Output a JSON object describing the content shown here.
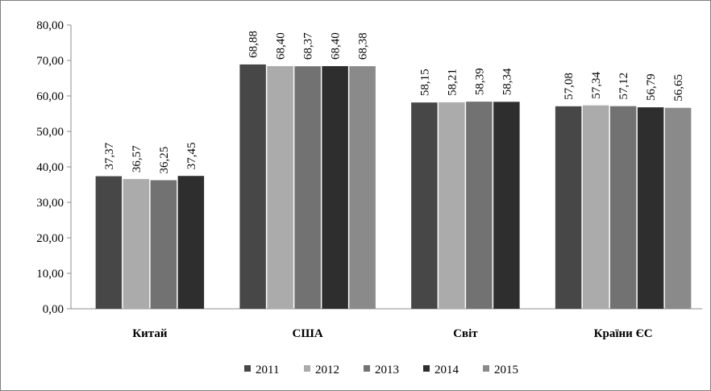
{
  "chart_data": {
    "type": "bar",
    "title": "",
    "xlabel": "",
    "ylabel": "",
    "categories": [
      "Китай",
      "США",
      "Світ",
      "Країни ЄС"
    ],
    "series": [
      {
        "name": "2011",
        "color": "#474747",
        "values": [
          37.37,
          68.88,
          58.15,
          57.08
        ]
      },
      {
        "name": "2012",
        "color": "#ababab",
        "values": [
          36.57,
          68.4,
          58.21,
          57.34
        ]
      },
      {
        "name": "2013",
        "color": "#727272",
        "values": [
          36.25,
          68.37,
          58.39,
          57.12
        ]
      },
      {
        "name": "2014",
        "color": "#2e2e2e",
        "values": [
          37.45,
          68.4,
          58.34,
          56.79
        ]
      },
      {
        "name": "2015",
        "color": "#8a8a8a",
        "values": [
          null,
          68.38,
          null,
          56.65
        ]
      }
    ],
    "data_labels": [
      [
        "37,37",
        "68,88",
        "58,15",
        "57,08"
      ],
      [
        "36,57",
        "68,40",
        "58,21",
        "57,34"
      ],
      [
        "36,25",
        "68,37",
        "58,39",
        "57,12"
      ],
      [
        "37,45",
        "68,40",
        "58,34",
        "56,79"
      ],
      [
        null,
        "68,38",
        null,
        "56,65"
      ]
    ],
    "ylim": [
      0,
      80
    ],
    "y_ticks": [
      0,
      10,
      20,
      30,
      40,
      50,
      60,
      70,
      80
    ],
    "y_tick_labels": [
      "0,00",
      "10,00",
      "20,00",
      "30,00",
      "40,00",
      "50,00",
      "60,00",
      "70,00",
      "80,00"
    ],
    "grid": false,
    "legend_position": "bottom"
  }
}
